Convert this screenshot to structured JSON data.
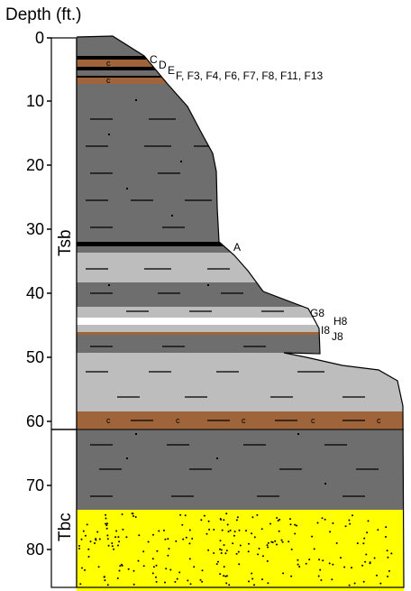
{
  "axis": {
    "title": "Depth (ft.)",
    "ticks": [
      "0",
      "10",
      "20",
      "30",
      "40",
      "50",
      "60",
      "70",
      "80"
    ]
  },
  "formations": {
    "upper": "Tsb",
    "lower": "Tbc"
  },
  "sample_labels": {
    "c": "C",
    "d": "D",
    "e": "E",
    "f_series": "F, F3, F4, F6, F7, F8, F11, F13",
    "a": "A",
    "g8": "G8",
    "h8": "H8",
    "i8": "I8",
    "j8": "J8"
  },
  "symbols": {
    "clay_mark": "c"
  },
  "colors": {
    "dark_gray": "#6e6e6e",
    "light_gray": "#bdbdbd",
    "black": "#000000",
    "brown": "#a0643a",
    "white_band": "#ffffff",
    "sand_yellow": "#ffff00",
    "line": "#000000"
  }
}
